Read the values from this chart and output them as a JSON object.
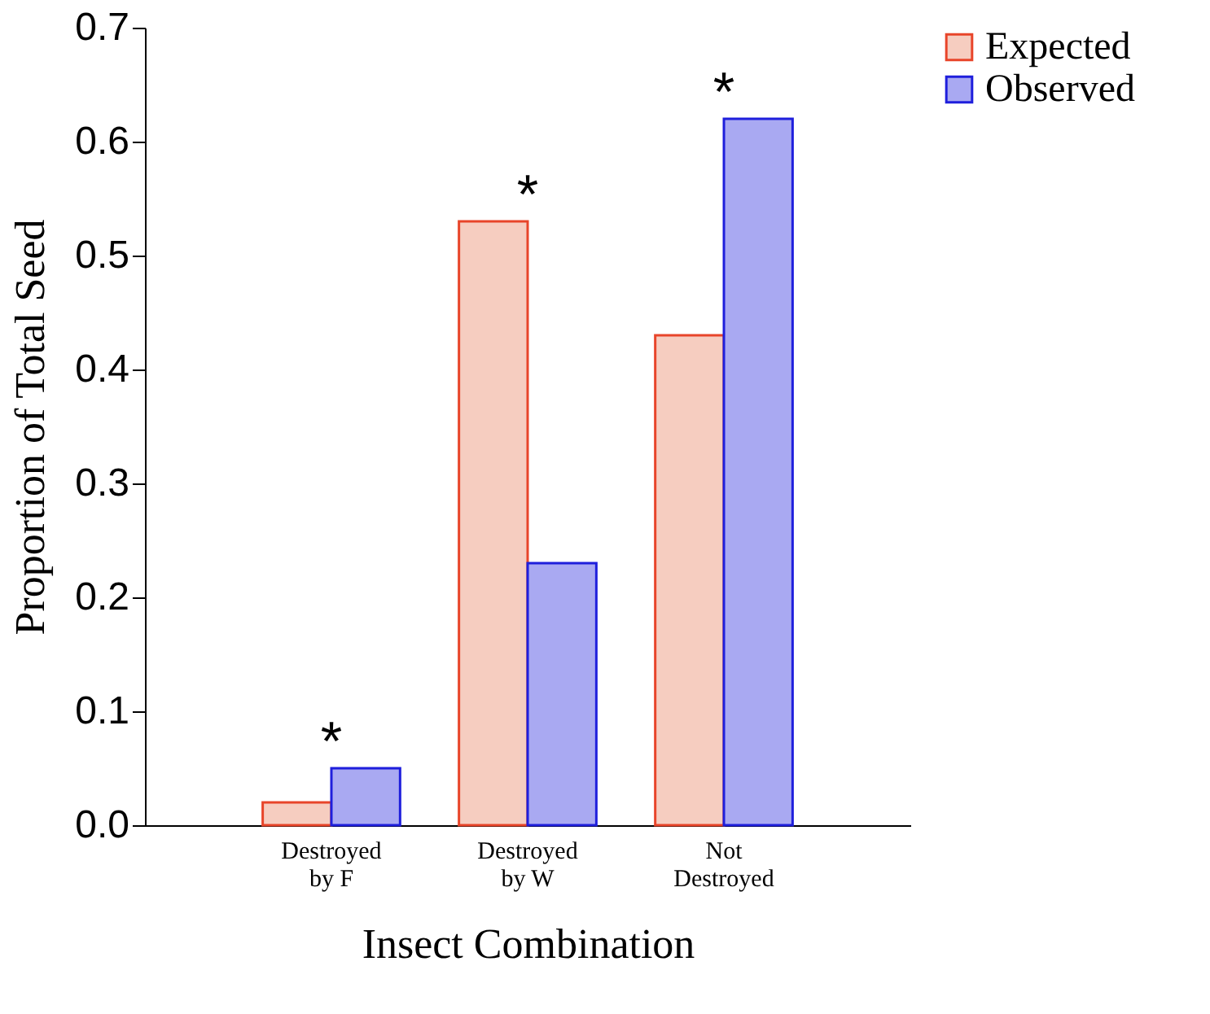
{
  "chart_data": {
    "type": "bar",
    "xlabel": "Insect Combination",
    "ylabel": "Proportion of Total Seed",
    "categories": [
      "Destroyed\nby F",
      "Destroyed\nby W",
      "Not\nDestroyed"
    ],
    "series": [
      {
        "name": "Expected",
        "color": "#f6cdc0",
        "values": [
          0.02,
          0.53,
          0.43
        ]
      },
      {
        "name": "Observed",
        "color": "#a9a9f2",
        "values": [
          0.05,
          0.23,
          0.62
        ]
      }
    ],
    "ylim": [
      0,
      0.7
    ],
    "yticks": [
      {
        "value": 0,
        "label": "0.0"
      },
      0.1,
      0.2,
      0.3,
      0.4,
      0.5,
      0.6,
      0.7
    ],
    "annotations": [
      "*",
      "*",
      "*"
    ],
    "legend": "right",
    "grid": false
  }
}
